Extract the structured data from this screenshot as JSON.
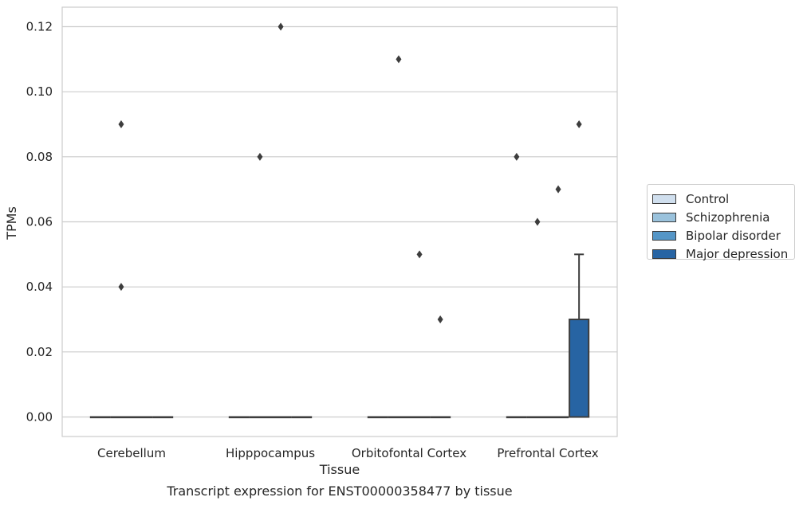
{
  "chart_data": {
    "type": "box",
    "title": "Transcript expression for ENST00000358477 by tissue",
    "xlabel": "Tissue",
    "ylabel": "TPMs",
    "ylim": [
      -0.006,
      0.126
    ],
    "yticks": [
      "0.00",
      "0.02",
      "0.04",
      "0.06",
      "0.08",
      "0.10",
      "0.12"
    ],
    "ytick_values": [
      0,
      0.02,
      0.04,
      0.06,
      0.08,
      0.1,
      0.12
    ],
    "grid": true,
    "legend_position": "right",
    "categories": [
      "Cerebellum",
      "Hipppocampus",
      "Orbitofontal Cortex",
      "Prefrontal Cortex"
    ],
    "series": [
      {
        "name": "Control",
        "color": "#d0dfee",
        "boxes": [
          {
            "min": 0,
            "q1": 0,
            "median": 0,
            "q3": 0,
            "max": 0,
            "outliers": []
          },
          {
            "min": 0,
            "q1": 0,
            "median": 0,
            "q3": 0,
            "max": 0,
            "outliers": []
          },
          {
            "min": 0,
            "q1": 0,
            "median": 0,
            "q3": 0,
            "max": 0,
            "outliers": []
          },
          {
            "min": 0,
            "q1": 0,
            "median": 0,
            "q3": 0,
            "max": 0,
            "outliers": [
              0.08
            ]
          }
        ]
      },
      {
        "name": "Schizophrenia",
        "color": "#9ac2dc",
        "boxes": [
          {
            "min": 0,
            "q1": 0,
            "median": 0,
            "q3": 0,
            "max": 0,
            "outliers": [
              0.09,
              0.04
            ]
          },
          {
            "min": 0,
            "q1": 0,
            "median": 0,
            "q3": 0,
            "max": 0,
            "outliers": [
              0.08
            ]
          },
          {
            "min": 0,
            "q1": 0,
            "median": 0,
            "q3": 0,
            "max": 0,
            "outliers": [
              0.11
            ]
          },
          {
            "min": 0,
            "q1": 0,
            "median": 0,
            "q3": 0,
            "max": 0,
            "outliers": [
              0.06
            ]
          }
        ]
      },
      {
        "name": "Bipolar disorder",
        "color": "#5596c7",
        "boxes": [
          {
            "min": 0,
            "q1": 0,
            "median": 0,
            "q3": 0,
            "max": 0,
            "outliers": []
          },
          {
            "min": 0,
            "q1": 0,
            "median": 0,
            "q3": 0,
            "max": 0,
            "outliers": [
              0.12
            ]
          },
          {
            "min": 0,
            "q1": 0,
            "median": 0,
            "q3": 0,
            "max": 0,
            "outliers": [
              0.05
            ]
          },
          {
            "min": 0,
            "q1": 0,
            "median": 0,
            "q3": 0,
            "max": 0,
            "outliers": [
              0.07
            ]
          }
        ]
      },
      {
        "name": "Major depression",
        "color": "#2764a3",
        "boxes": [
          {
            "min": 0,
            "q1": 0,
            "median": 0,
            "q3": 0,
            "max": 0,
            "outliers": []
          },
          {
            "min": 0,
            "q1": 0,
            "median": 0,
            "q3": 0,
            "max": 0,
            "outliers": []
          },
          {
            "min": 0,
            "q1": 0,
            "median": 0,
            "q3": 0,
            "max": 0,
            "outliers": [
              0.03
            ]
          },
          {
            "min": 0,
            "q1": 0,
            "median": 0,
            "q3": 0.03,
            "max": 0.05,
            "outliers": [
              0.09
            ]
          }
        ]
      }
    ]
  }
}
